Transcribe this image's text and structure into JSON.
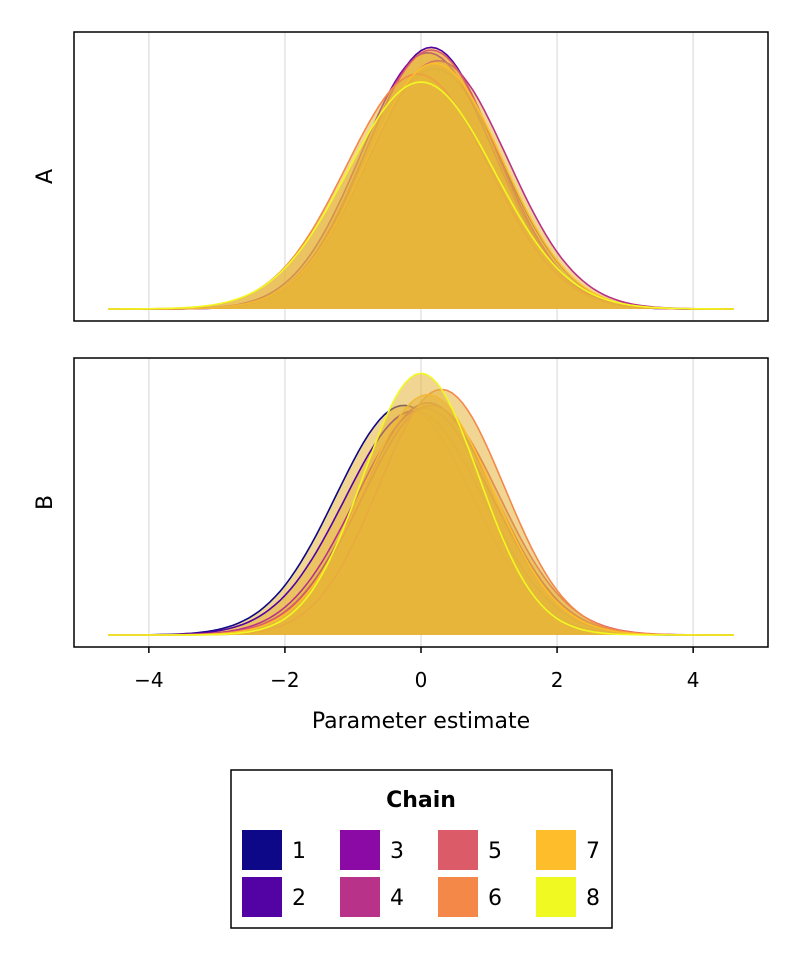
{
  "chart_data": {
    "type": "area",
    "xlabel": "Parameter estimate",
    "xticks": [
      -4,
      -2,
      0,
      2,
      4
    ],
    "xlim": [
      -5.1,
      5.1
    ],
    "grid_x": true,
    "legend": {
      "title": "Chain",
      "placement": "bottom-center",
      "columns": 4,
      "entries": [
        {
          "label": "1",
          "color": "#0d0887"
        },
        {
          "label": "2",
          "color": "#5302a3"
        },
        {
          "label": "3",
          "color": "#8b0aa5"
        },
        {
          "label": "4",
          "color": "#b83289"
        },
        {
          "label": "5",
          "color": "#db5c68"
        },
        {
          "label": "6",
          "color": "#f48849"
        },
        {
          "label": "7",
          "color": "#febd2a"
        },
        {
          "label": "8",
          "color": "#f0f921"
        }
      ]
    },
    "fill_color": "#e6b43a",
    "panels": [
      {
        "label": "A",
        "range": [
          -4.6,
          4.6
        ],
        "series": [
          {
            "name": "1",
            "mean": 0.2,
            "sd": 1.0,
            "peak": 0.9
          },
          {
            "name": "2",
            "mean": 0.15,
            "sd": 0.95,
            "peak": 0.98
          },
          {
            "name": "3",
            "mean": 0.1,
            "sd": 0.98,
            "peak": 0.96
          },
          {
            "name": "4",
            "mean": 0.25,
            "sd": 1.02,
            "peak": 0.93
          },
          {
            "name": "5",
            "mean": 0.15,
            "sd": 0.97,
            "peak": 0.97
          },
          {
            "name": "6",
            "mean": -0.05,
            "sd": 1.05,
            "peak": 0.88
          },
          {
            "name": "7",
            "mean": 0.2,
            "sd": 1.0,
            "peak": 0.92
          },
          {
            "name": "8",
            "mean": 0.0,
            "sd": 1.08,
            "peak": 0.85
          }
        ]
      },
      {
        "label": "B",
        "range": [
          -4.6,
          4.6
        ],
        "series": [
          {
            "name": "1",
            "mean": -0.25,
            "sd": 1.0,
            "peak": 0.86
          },
          {
            "name": "2",
            "mean": -0.1,
            "sd": 1.02,
            "peak": 0.84
          },
          {
            "name": "3",
            "mean": 0.1,
            "sd": 0.98,
            "peak": 0.87
          },
          {
            "name": "4",
            "mean": 0.05,
            "sd": 1.0,
            "peak": 0.85
          },
          {
            "name": "5",
            "mean": 0.15,
            "sd": 1.0,
            "peak": 0.86
          },
          {
            "name": "6",
            "mean": 0.3,
            "sd": 0.92,
            "peak": 0.92
          },
          {
            "name": "7",
            "mean": 0.1,
            "sd": 0.95,
            "peak": 0.9
          },
          {
            "name": "8",
            "mean": 0.0,
            "sd": 0.85,
            "peak": 0.98
          }
        ]
      }
    ]
  }
}
